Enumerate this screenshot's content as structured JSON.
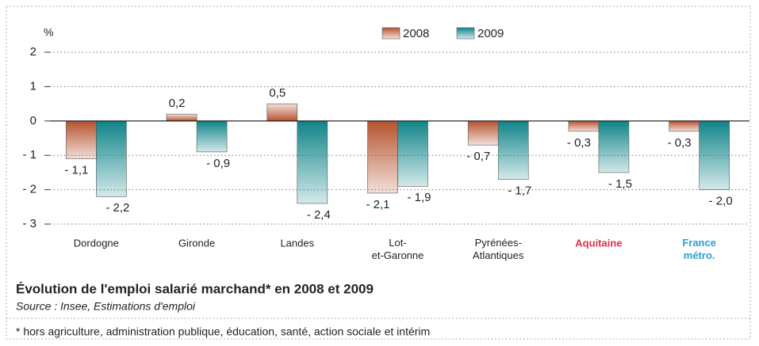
{
  "chart_data": {
    "type": "bar",
    "title": "Évolution de l'emploi salarié marchand* en 2008 et 2009",
    "subtitle": "Source : Insee, Estimations d'emploi",
    "note": "* hors agriculture, administration publique, éducation, santé, action sociale et intérim",
    "y_label": "%",
    "categories": [
      "Dordogne",
      "Gironde",
      "Landes",
      "Lot-\net-Garonne",
      "Pyrénées-\nAtlantiques",
      "Aquitaine",
      "France\nmétro."
    ],
    "category_colors": [
      "#222222",
      "#222222",
      "#222222",
      "#222222",
      "#222222",
      "#e0304a",
      "#2a9fd6"
    ],
    "series": [
      {
        "name": "2008",
        "color": "#b5532e",
        "values": [
          -1.1,
          0.2,
          0.5,
          -2.1,
          -0.7,
          -0.3,
          -0.3
        ],
        "value_labels": [
          "- 1,1",
          "0,2",
          "0,5",
          "- 2,1",
          "- 0,7",
          "- 0,3",
          "- 0,3"
        ]
      },
      {
        "name": "2009",
        "color": "#0f8489",
        "values": [
          -2.2,
          -0.9,
          -2.4,
          -1.9,
          -1.7,
          -1.5,
          -2.0
        ],
        "value_labels": [
          "- 2,2",
          "- 0,9",
          "- 2,4",
          "- 1,9",
          "- 1,7",
          "- 1,5",
          "- 2,0"
        ]
      }
    ],
    "ylim": [
      -3,
      2
    ],
    "yticks": [
      2,
      1,
      0,
      {
        "value": -1,
        "label": "- 1"
      },
      {
        "value": -2,
        "label": "- 2"
      },
      {
        "value": -3,
        "label": "- 3"
      }
    ],
    "grid": true,
    "legend": "top"
  }
}
